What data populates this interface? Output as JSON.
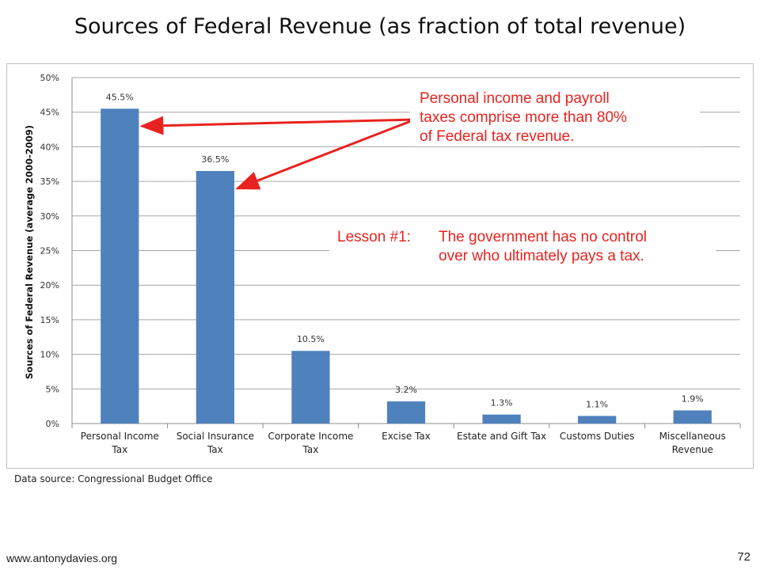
{
  "slide": {
    "title": "Sources of Federal Revenue (as fraction of total revenue)",
    "source_note": "Data source: Congressional Budget Office",
    "footer_url": "www.antonydavies.org",
    "page_number": "72"
  },
  "callouts": {
    "main": {
      "line1": "Personal income and payroll",
      "line2": "taxes comprise more than 80%",
      "line3": "of Federal tax revenue."
    },
    "lesson": {
      "label": "Lesson #1:",
      "line1": "The government has no control",
      "line2": "over who ultimately pays a tax."
    }
  },
  "colors": {
    "bar": "#4f81bd",
    "annotation": "#e8231f",
    "grid": "#a6a6a6"
  },
  "chart_data": {
    "type": "bar",
    "categories": [
      [
        "Personal Income",
        "Tax"
      ],
      [
        "Social Insurance",
        "Tax"
      ],
      [
        "Corporate Income",
        "Tax"
      ],
      [
        "Excise Tax"
      ],
      [
        "Estate and Gift Tax"
      ],
      [
        "Customs Duties"
      ],
      [
        "Miscellaneous",
        "Revenue"
      ]
    ],
    "values": [
      45.5,
      36.5,
      10.5,
      3.2,
      1.3,
      1.1,
      1.9
    ],
    "data_labels": [
      "45.5%",
      "36.5%",
      "10.5%",
      "3.2%",
      "1.3%",
      "1.1%",
      "1.9%"
    ],
    "ylabel": "Sources of Federal Revenue (average 2000-2009)",
    "ylim": [
      0,
      50
    ],
    "yticks": [
      0,
      5,
      10,
      15,
      20,
      25,
      30,
      35,
      40,
      45,
      50
    ],
    "ytick_labels": [
      "0%",
      "5%",
      "10%",
      "15%",
      "20%",
      "25%",
      "30%",
      "35%",
      "40%",
      "45%",
      "50%"
    ],
    "grid": true,
    "legend": "none",
    "arrows_to_categories": [
      0,
      1
    ]
  }
}
